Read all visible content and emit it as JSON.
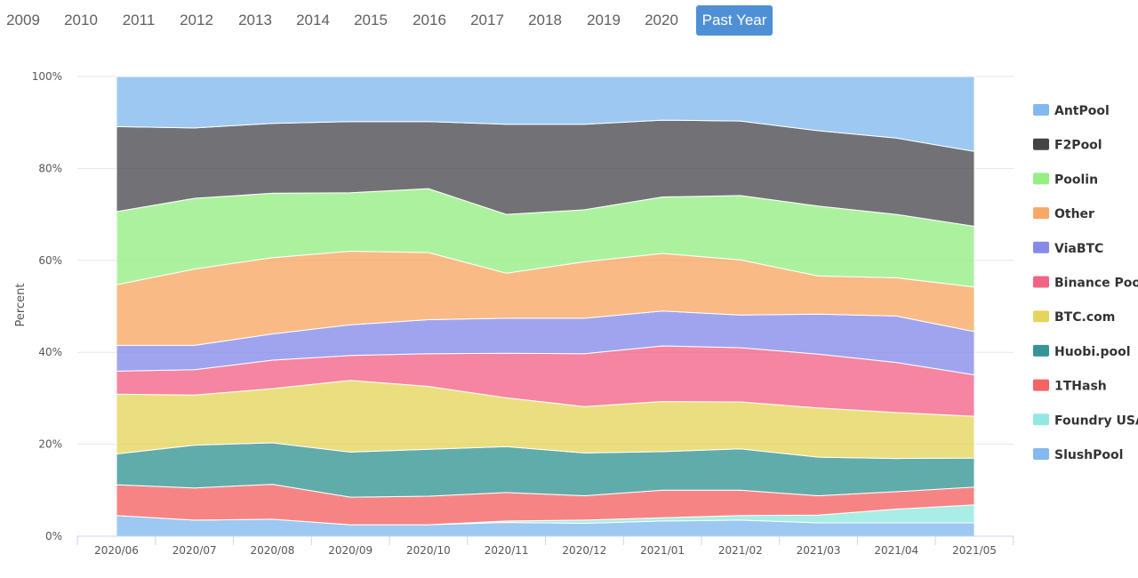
{
  "year_tabs": [
    {
      "label": "2009"
    },
    {
      "label": "2010"
    },
    {
      "label": "2011"
    },
    {
      "label": "2012"
    },
    {
      "label": "2013"
    },
    {
      "label": "2014"
    },
    {
      "label": "2015"
    },
    {
      "label": "2016"
    },
    {
      "label": "2017"
    },
    {
      "label": "2018"
    },
    {
      "label": "2019"
    },
    {
      "label": "2020"
    },
    {
      "label": "Past Year",
      "active": true
    }
  ],
  "chart_data": {
    "type": "area",
    "stacked": "percent",
    "ylabel": "Percent",
    "ylim": [
      0,
      100
    ],
    "y_ticks": [
      "0%",
      "20%",
      "40%",
      "60%",
      "80%",
      "100%"
    ],
    "grid": true,
    "legend_position": "right",
    "categories": [
      "2020/06",
      "2020/07",
      "2020/08",
      "2020/09",
      "2020/10",
      "2020/11",
      "2020/12",
      "2021/01",
      "2021/02",
      "2021/03",
      "2021/04",
      "2021/05"
    ],
    "series": [
      {
        "name": "SlushPool",
        "color": "#7cb5ec",
        "values": [
          4.5,
          3.5,
          3.7,
          2.5,
          2.5,
          3.0,
          2.8,
          3.3,
          3.5,
          2.9,
          2.9,
          2.9
        ]
      },
      {
        "name": "Foundry USA",
        "color": "#8be7de",
        "values": [
          0.0,
          0.0,
          0.0,
          0.0,
          0.0,
          0.3,
          0.7,
          0.7,
          1.0,
          1.7,
          3.0,
          3.9
        ]
      },
      {
        "name": "1THash",
        "color": "#f45b5b",
        "values": [
          6.7,
          7.0,
          7.6,
          6.0,
          6.2,
          6.2,
          5.3,
          6.0,
          5.5,
          4.2,
          3.8,
          3.9
        ]
      },
      {
        "name": "Huobi.pool",
        "color": "#2b908f",
        "values": [
          6.7,
          9.3,
          9.0,
          9.8,
          10.2,
          10.0,
          9.3,
          8.4,
          9.0,
          8.4,
          7.2,
          6.3
        ]
      },
      {
        "name": "BTC.com",
        "color": "#e4d354",
        "values": [
          13.0,
          10.9,
          11.8,
          15.6,
          13.7,
          10.6,
          10.1,
          10.9,
          10.2,
          10.7,
          10.0,
          9.1
        ]
      },
      {
        "name": "Binance Pool",
        "color": "#f15c80",
        "values": [
          5.0,
          5.5,
          6.2,
          5.4,
          7.1,
          9.7,
          11.5,
          12.1,
          11.8,
          11.7,
          10.9,
          9.0
        ]
      },
      {
        "name": "ViaBTC",
        "color": "#8085e9",
        "values": [
          5.6,
          5.3,
          5.7,
          6.7,
          7.4,
          7.6,
          7.7,
          7.6,
          7.1,
          8.7,
          10.1,
          9.4
        ]
      },
      {
        "name": "Other",
        "color": "#f7a35c",
        "values": [
          13.2,
          16.6,
          16.6,
          16.0,
          14.6,
          9.8,
          12.3,
          12.5,
          12.0,
          8.3,
          8.3,
          9.7
        ]
      },
      {
        "name": "Poolin",
        "color": "#90ed7d",
        "values": [
          15.9,
          15.4,
          14.0,
          12.7,
          13.9,
          12.8,
          11.3,
          12.3,
          14.0,
          15.2,
          13.8,
          13.2
        ]
      },
      {
        "name": "F2Pool",
        "color": "#434348",
        "values": [
          18.5,
          15.3,
          15.2,
          15.5,
          14.6,
          19.6,
          18.6,
          16.7,
          16.2,
          16.4,
          16.6,
          16.3
        ]
      },
      {
        "name": "AntPool",
        "color": "#7cb5ec",
        "values": [
          10.9,
          11.2,
          10.2,
          9.8,
          9.8,
          10.4,
          10.4,
          9.5,
          9.7,
          11.8,
          13.4,
          16.3
        ]
      }
    ]
  }
}
